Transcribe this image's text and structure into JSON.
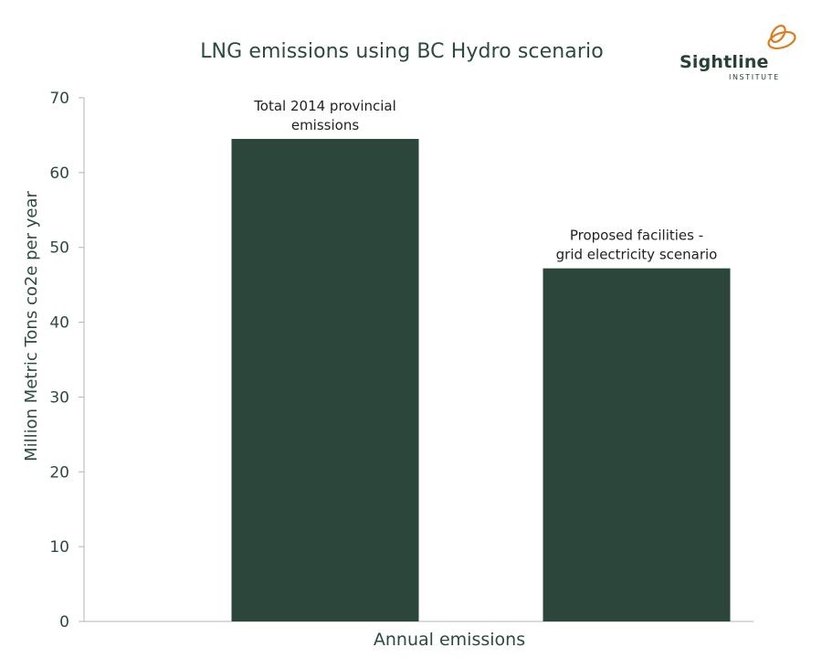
{
  "chart_data": {
    "type": "bar",
    "title": "LNG emissions using BC Hydro scenario",
    "xlabel": "Annual emissions",
    "ylabel": "Million Metric Tons co2e per year",
    "ylim": [
      0,
      70
    ],
    "yticks": [
      0,
      10,
      20,
      30,
      40,
      50,
      60,
      70
    ],
    "grid": false,
    "categories": [
      "Total 2014 provincial emissions",
      "Proposed facilities - grid electricity scenario"
    ],
    "category_labels": [
      [
        "Total 2014 provincial",
        "emissions"
      ],
      [
        "Proposed facilities -",
        "grid electricity scenario"
      ]
    ],
    "values": [
      64.5,
      47.2
    ],
    "bar_color": "#2c463c"
  },
  "logo": {
    "name": "Sightline",
    "subtitle": "INSTITUTE",
    "accent_color": "#e07b1c",
    "text_color": "#264236"
  }
}
